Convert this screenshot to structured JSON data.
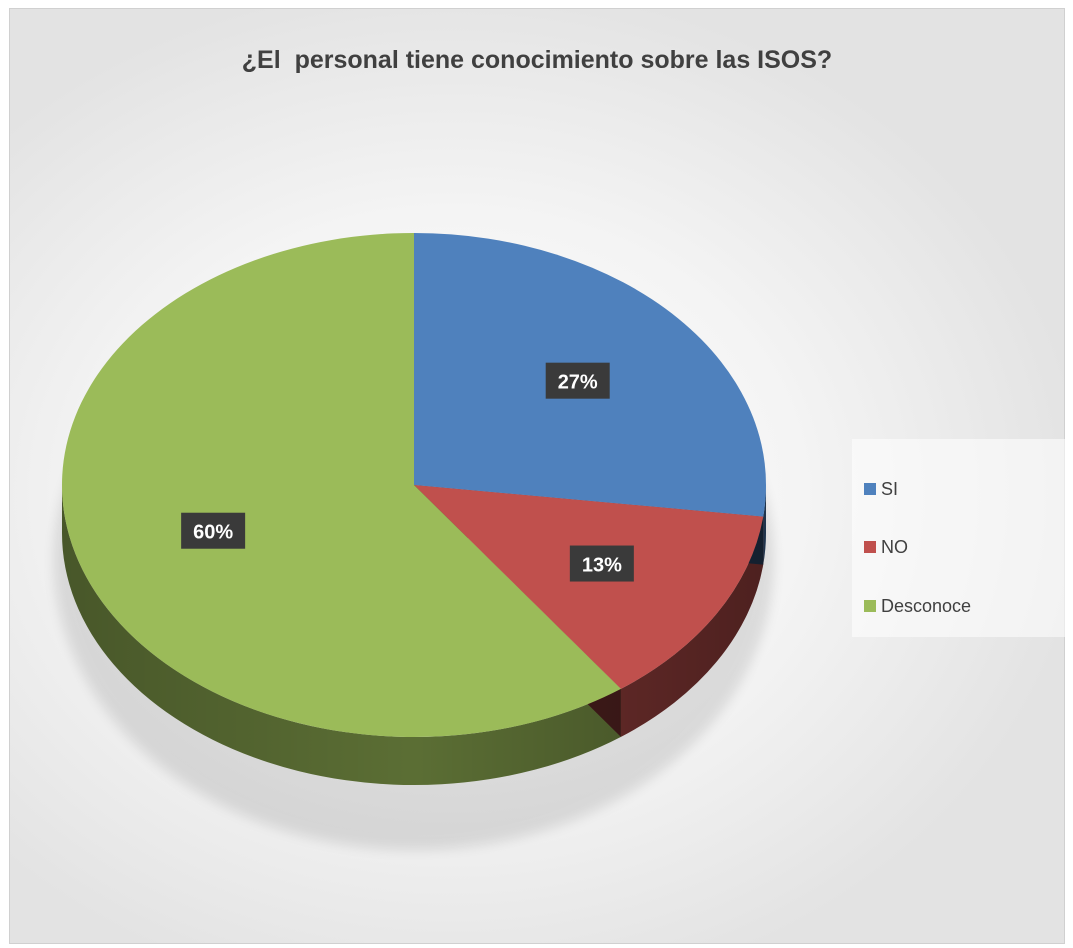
{
  "chart_data": {
    "type": "pie",
    "title": "¿El  personal tiene conocimiento sobre las ISOS?",
    "categories": [
      "SI",
      "NO",
      "Desconoce"
    ],
    "values": [
      27,
      13,
      60
    ],
    "data_labels": [
      "27%",
      "13%",
      "60%"
    ],
    "colors": [
      "#4f81bd",
      "#c0504d",
      "#9bbb59"
    ],
    "legend_position": "right",
    "style": "3d"
  }
}
